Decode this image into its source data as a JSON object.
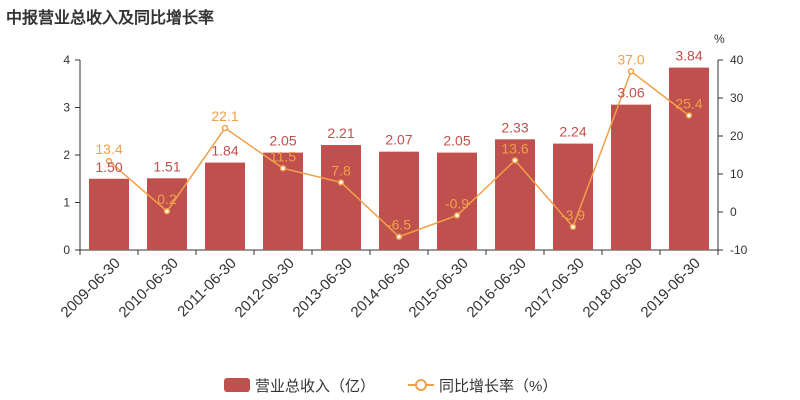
{
  "title": "中报营业总收入及同比增长率",
  "legend": {
    "bar_label": "营业总收入（亿）",
    "line_label": "同比增长率（%）"
  },
  "colors": {
    "bar": "#c0504d",
    "line": "#f0a04b",
    "axis": "#333333"
  },
  "chart_data": {
    "type": "bar+line",
    "title": "中报营业总收入及同比增长率",
    "categories": [
      "2009-06-30",
      "2010-06-30",
      "2011-06-30",
      "2012-06-30",
      "2013-06-30",
      "2014-06-30",
      "2015-06-30",
      "2016-06-30",
      "2017-06-30",
      "2018-06-30",
      "2019-06-30"
    ],
    "series": [
      {
        "name": "营业总收入（亿）",
        "type": "bar",
        "axis": "left",
        "values": [
          1.5,
          1.51,
          1.84,
          2.05,
          2.21,
          2.07,
          2.05,
          2.33,
          2.24,
          3.06,
          3.84
        ],
        "labels": [
          "1.50",
          "1.51",
          "1.84",
          "2.05",
          "2.21",
          "2.07",
          "2.05",
          "2.33",
          "2.24",
          "3.06",
          "3.84"
        ]
      },
      {
        "name": "同比增长率（%）",
        "type": "line",
        "axis": "right",
        "values": [
          13.4,
          0.2,
          22.1,
          11.5,
          7.8,
          -6.5,
          -0.9,
          13.6,
          -3.9,
          37.0,
          25.4
        ],
        "labels": [
          "13.4",
          "0.2",
          "22.1",
          "11.5",
          "7.8",
          "-6.5",
          "-0.9",
          "13.6",
          "-3.9",
          "37.0",
          "25.4"
        ]
      }
    ],
    "y_left": {
      "min": 0,
      "max": 4,
      "ticks": [
        "0",
        "1",
        "2",
        "3",
        "4"
      ]
    },
    "y_right": {
      "min": -10,
      "max": 40,
      "unit": "%",
      "ticks": [
        "-10",
        "0",
        "10",
        "20",
        "30",
        "40"
      ]
    },
    "legend_position": "bottom",
    "grid": false
  }
}
